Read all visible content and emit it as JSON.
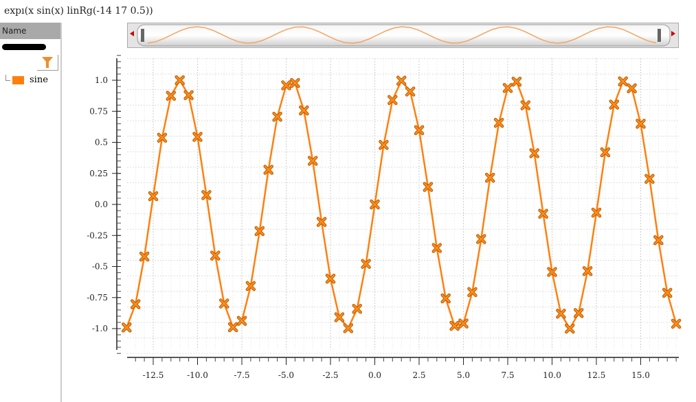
{
  "title": "expı(x sin(x) linRg(-14 17 0.5))",
  "sidebar": {
    "header": "Name",
    "filter_icon": "filter-funnel-icon",
    "legend": [
      {
        "label": "sine",
        "color": "#ff7f0e"
      }
    ]
  },
  "chart_data": {
    "type": "line",
    "marker": "x",
    "color": "#ff7f0e",
    "grid": true,
    "xlim": [
      -14,
      17
    ],
    "ylim": [
      -1.2,
      1.2
    ],
    "xticks": [
      "-12.5",
      "-10.0",
      "-7.5",
      "-5.0",
      "-2.5",
      "0.0",
      "2.5",
      "5.0",
      "7.5",
      "10.0",
      "12.5",
      "15.0"
    ],
    "yticks": [
      "1.0",
      "0.75",
      "0.5",
      "0.25",
      "0.0",
      "-0.25",
      "-0.5",
      "-0.75",
      "-1.0"
    ],
    "series": [
      {
        "name": "sine",
        "x": [
          -14,
          -13.5,
          -13,
          -12.5,
          -12,
          -11.5,
          -11,
          -10.5,
          -10,
          -9.5,
          -9,
          -8.5,
          -8,
          -7.5,
          -7,
          -6.5,
          -6,
          -5.5,
          -5,
          -4.5,
          -4,
          -3.5,
          -3,
          -2.5,
          -2,
          -1.5,
          -1,
          -0.5,
          0,
          0.5,
          1,
          1.5,
          2,
          2.5,
          3,
          3.5,
          4,
          4.5,
          5,
          5.5,
          6,
          6.5,
          7,
          7.5,
          8,
          8.5,
          9,
          9.5,
          10,
          10.5,
          11,
          11.5,
          12,
          12.5,
          13,
          13.5,
          14,
          14.5,
          15,
          15.5,
          16,
          16.5,
          17
        ],
        "y": [
          -0.991,
          -0.804,
          -0.42,
          0.066,
          0.537,
          0.875,
          1.0,
          0.88,
          0.544,
          0.075,
          -0.412,
          -0.798,
          -0.989,
          -0.938,
          -0.657,
          -0.215,
          0.279,
          0.706,
          0.959,
          0.978,
          0.757,
          0.351,
          -0.141,
          -0.598,
          -0.909,
          -0.997,
          -0.841,
          -0.479,
          0.0,
          0.479,
          0.841,
          0.997,
          0.909,
          0.598,
          0.141,
          -0.351,
          -0.757,
          -0.978,
          -0.959,
          -0.706,
          -0.279,
          0.215,
          0.657,
          0.938,
          0.989,
          0.798,
          0.412,
          -0.075,
          -0.544,
          -0.88,
          -1.0,
          -0.875,
          -0.537,
          -0.066,
          0.42,
          0.804,
          0.991,
          0.935,
          0.65,
          0.206,
          -0.288,
          -0.712,
          -0.961
        ]
      }
    ]
  }
}
